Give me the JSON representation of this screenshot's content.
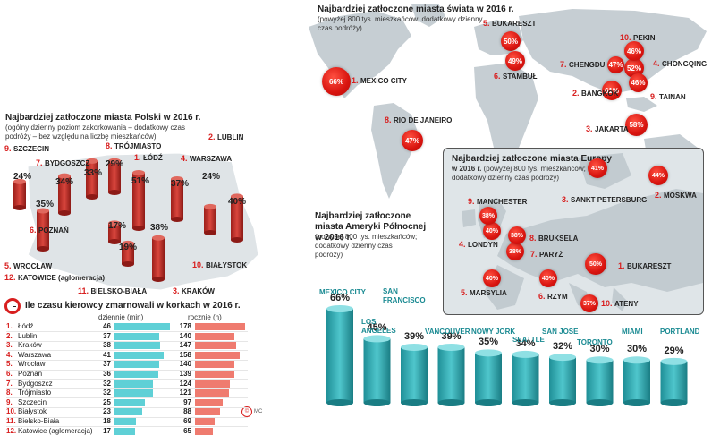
{
  "colors": {
    "red": "#d81e1e",
    "teal": "#3ab8c0",
    "map_light": "#dde3e6",
    "map_dark": "#c2cbd0",
    "cylinder": "#c9332c"
  },
  "world": {
    "title": "Najbardziej zatłoczone miasta świata w 2016 r.",
    "subtitle": "(powyżej 800 tys. mieszkańców; dodatkowy dzienny czas podróży)"
  },
  "europe": {
    "title": "Najbardziej zatłoczone miasta Europy",
    "subtitle_bold": "w 2016 r.",
    "subtitle_rest": " (powyżej 800 tys. mieszkańców; dodatkowy dzienny czas podróży)"
  },
  "poland": {
    "title": "Najbardziej zatłoczone miasta Polski w 2016 r.",
    "subtitle": "(ogólny dzienny poziom zakorkowania – dodatkowy czas podróży – bez względu na liczbę mieszkańców)"
  },
  "namerica": {
    "title": "Najbardziej zatłoczone miasta Ameryki Północnej w 2016 r.",
    "subtitle": "(powyżej 800 tys. mieszkańców; dodatkowy dzienny czas podróży)"
  },
  "time_lost": {
    "title": "Ile czasu kierowcy zmarnowali w korkach w 2016 r.",
    "col_daily": "dziennie (min)",
    "col_yearly": "rocznie (h)",
    "credit": "MC"
  },
  "chart_data": [
    {
      "type": "scatter",
      "title": "Najbardziej zatłoczone miasta świata w 2016 r.",
      "points": [
        {
          "rank": "1.",
          "city": "MEXICO CITY",
          "value": "66%"
        },
        {
          "rank": "2.",
          "city": "BANGKOK",
          "value": "61%"
        },
        {
          "rank": "3.",
          "city": "JAKARTA",
          "value": "58%"
        },
        {
          "rank": "4.",
          "city": "CHONGQING",
          "value": "52%"
        },
        {
          "rank": "5.",
          "city": "BUKARESZT",
          "value": "50%"
        },
        {
          "rank": "6.",
          "city": "STAMBUŁ",
          "value": "49%"
        },
        {
          "rank": "7.",
          "city": "CHENGDU",
          "value": "47%"
        },
        {
          "rank": "8.",
          "city": "RIO DE JANEIRO",
          "value": "47%"
        },
        {
          "rank": "9.",
          "city": "TAINAN",
          "value": "46%"
        },
        {
          "rank": "10.",
          "city": "PEKIN",
          "value": "46%"
        }
      ]
    },
    {
      "type": "scatter",
      "title": "Najbardziej zatłoczone miasta Europy w 2016 r.",
      "points": [
        {
          "rank": "1.",
          "city": "BUKARESZT",
          "value": "50%"
        },
        {
          "rank": "2.",
          "city": "MOSKWA",
          "value": "44%"
        },
        {
          "rank": "3.",
          "city": "SANKT PETERSBURG",
          "value": "41%"
        },
        {
          "rank": "4.",
          "city": "LONDYN",
          "value": "40%"
        },
        {
          "rank": "5.",
          "city": "MARSYLIA",
          "value": "40%"
        },
        {
          "rank": "6.",
          "city": "RZYM",
          "value": "40%"
        },
        {
          "rank": "7.",
          "city": "PARYŻ",
          "value": "38%"
        },
        {
          "rank": "8.",
          "city": "BRUKSELA",
          "value": "38%"
        },
        {
          "rank": "9.",
          "city": "MANCHESTER",
          "value": "38%"
        },
        {
          "rank": "10.",
          "city": "ATENY",
          "value": "37%"
        }
      ]
    },
    {
      "type": "bar",
      "title": "Najbardziej zatłoczone miasta Polski w 2016 r.",
      "categories": [
        "ŁÓDŹ",
        "LUBLIN",
        "KRAKÓW",
        "WARSZAWA",
        "WROCŁAW",
        "POZNAŃ",
        "BYDGOSZCZ",
        "TRÓJMIASTO",
        "SZCZECIN",
        "BIAŁYSTOK",
        "BIELSKO-BIAŁA",
        "KATOWICE (aglomeracja)"
      ],
      "ranks": [
        "1.",
        "2.",
        "3.",
        "4.",
        "5.",
        "6.",
        "7.",
        "8.",
        "9.",
        "10.",
        "11.",
        "12."
      ],
      "values": [
        51,
        40,
        38,
        37,
        35,
        34,
        33,
        29,
        24,
        24,
        19,
        17
      ],
      "labels": [
        "51%",
        "40%",
        "38%",
        "37%",
        "35%",
        "34%",
        "33%",
        "29%",
        "24%",
        "24%",
        "19%",
        "17%"
      ]
    },
    {
      "type": "bar",
      "title": "Najbardziej zatłoczone miasta Ameryki Północnej w 2016 r.",
      "categories": [
        "MEXICO CITY",
        "LOS ANGELES",
        "SAN FRANCISCO",
        "VANCOUVER",
        "NOWY JORK",
        "SEATTLE",
        "SAN JOSE",
        "TORONTO",
        "MIAMI",
        "PORTLAND"
      ],
      "values": [
        66,
        45,
        39,
        39,
        35,
        34,
        32,
        30,
        30,
        29
      ],
      "labels": [
        "66%",
        "45%",
        "39%",
        "39%",
        "35%",
        "34%",
        "32%",
        "30%",
        "30%",
        "29%"
      ]
    },
    {
      "type": "bar",
      "title": "Ile czasu kierowcy zmarnowali w korkach w 2016 r.",
      "categories": [
        "Łódź",
        "Lublin",
        "Kraków",
        "Warszawa",
        "Wrocław",
        "Poznań",
        "Bydgoszcz",
        "Trójmiasto",
        "Szczecin",
        "Białystok",
        "Bielsko-Biała",
        "Katowice (aglomeracja)"
      ],
      "ranks": [
        "1.",
        "2.",
        "3.",
        "4.",
        "5.",
        "6.",
        "7.",
        "8.",
        "9.",
        "10.",
        "11.",
        "12."
      ],
      "series": [
        {
          "name": "dziennie (min)",
          "values": [
            46,
            37,
            38,
            41,
            37,
            36,
            32,
            32,
            25,
            23,
            18,
            17
          ]
        },
        {
          "name": "rocznie (h)",
          "values": [
            178,
            140,
            147,
            158,
            140,
            139,
            124,
            121,
            97,
            88,
            69,
            65
          ]
        }
      ]
    }
  ]
}
